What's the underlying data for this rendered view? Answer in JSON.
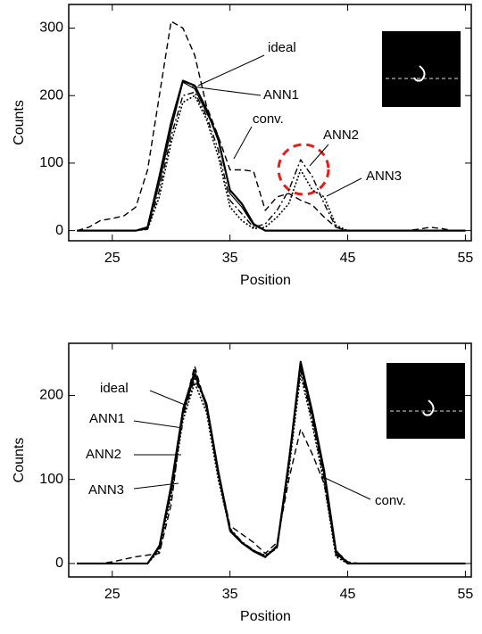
{
  "chart_data": [
    {
      "type": "line",
      "x_label": "Position",
      "y_label": "Counts",
      "x": [
        22,
        23,
        24,
        25,
        26,
        27,
        28,
        29,
        30,
        31,
        32,
        33,
        34,
        35,
        36,
        37,
        38,
        39,
        40,
        41,
        42,
        43,
        44,
        45,
        46,
        47,
        48,
        49,
        50,
        51,
        52,
        53,
        54,
        55
      ],
      "xlim": [
        21.3,
        55.5
      ],
      "xticks": [
        25,
        35,
        45,
        55
      ],
      "ylim": [
        -15,
        335
      ],
      "yticks": [
        0,
        100,
        200,
        300
      ],
      "annotations": [
        "ideal",
        "ANN1",
        "conv.",
        "ANN2",
        "ANN3"
      ],
      "series": [
        {
          "name": "ideal",
          "color": "#000000",
          "style": "solid",
          "values": [
            0,
            0,
            0,
            0,
            0,
            0,
            5,
            80,
            160,
            222,
            215,
            180,
            135,
            60,
            40,
            10,
            0,
            0,
            0,
            0,
            0,
            0,
            0,
            0,
            0,
            0,
            0,
            0,
            0,
            0,
            0,
            0,
            0,
            0
          ]
        },
        {
          "name": "ANN1",
          "color": "#000000",
          "style": "thin",
          "values": [
            0,
            0,
            0,
            0,
            0,
            0,
            3,
            70,
            150,
            220,
            210,
            175,
            140,
            55,
            35,
            8,
            0,
            0,
            0,
            0,
            0,
            0,
            0,
            0,
            0,
            0,
            0,
            0,
            0,
            0,
            0,
            0,
            0,
            0
          ]
        },
        {
          "name": "ANN2",
          "color": "#000000",
          "style": "dashdot",
          "values": [
            0,
            0,
            0,
            0,
            0,
            0,
            2,
            60,
            140,
            200,
            205,
            170,
            120,
            45,
            25,
            5,
            10,
            30,
            60,
            105,
            80,
            40,
            5,
            0,
            0,
            0,
            0,
            0,
            0,
            0,
            0,
            0,
            0,
            0
          ]
        },
        {
          "name": "ANN3",
          "color": "#000000",
          "style": "dotted",
          "values": [
            0,
            0,
            0,
            0,
            0,
            0,
            2,
            50,
            130,
            190,
            200,
            165,
            110,
            35,
            15,
            3,
            5,
            20,
            40,
            90,
            60,
            50,
            8,
            0,
            0,
            0,
            0,
            0,
            0,
            0,
            0,
            0,
            0,
            0
          ]
        },
        {
          "name": "conv.",
          "color": "#000000",
          "style": "dashed",
          "values": [
            0,
            5,
            15,
            18,
            22,
            35,
            90,
            200,
            310,
            300,
            260,
            185,
            140,
            90,
            90,
            88,
            30,
            50,
            55,
            45,
            38,
            20,
            5,
            0,
            0,
            0,
            0,
            0,
            0,
            2,
            5,
            3,
            0,
            0
          ]
        }
      ]
    },
    {
      "type": "line",
      "x_label": "Position",
      "y_label": "Counts",
      "x": [
        22,
        23,
        24,
        25,
        26,
        27,
        28,
        29,
        30,
        31,
        32,
        33,
        34,
        35,
        36,
        37,
        38,
        39,
        40,
        41,
        42,
        43,
        44,
        45,
        46,
        47,
        48,
        49,
        50,
        51,
        52,
        53,
        54,
        55
      ],
      "xlim": [
        21.3,
        55.5
      ],
      "xticks": [
        25,
        35,
        45,
        55
      ],
      "ylim": [
        -16,
        262
      ],
      "yticks": [
        0,
        100,
        200
      ],
      "annotations": [
        "ideal",
        "ANN1",
        "ANN2",
        "ANN3",
        "conv."
      ],
      "series": [
        {
          "name": "ideal",
          "color": "#000000",
          "style": "solid",
          "values": [
            0,
            0,
            0,
            0,
            0,
            0,
            0,
            20,
            90,
            180,
            225,
            190,
            110,
            40,
            25,
            15,
            8,
            20,
            120,
            240,
            180,
            110,
            15,
            0,
            0,
            0,
            0,
            0,
            0,
            0,
            0,
            0,
            0,
            0
          ]
        },
        {
          "name": "ANN1",
          "color": "#000000",
          "style": "thin",
          "values": [
            0,
            0,
            0,
            0,
            0,
            0,
            0,
            22,
            95,
            185,
            230,
            185,
            105,
            38,
            24,
            14,
            7,
            22,
            125,
            235,
            175,
            105,
            12,
            0,
            0,
            0,
            0,
            0,
            0,
            0,
            0,
            0,
            0,
            0
          ]
        },
        {
          "name": "ANN2",
          "color": "#000000",
          "style": "dashdot",
          "values": [
            0,
            0,
            0,
            0,
            0,
            0,
            0,
            18,
            85,
            175,
            220,
            188,
            108,
            42,
            26,
            16,
            9,
            18,
            115,
            230,
            170,
            100,
            10,
            0,
            0,
            0,
            0,
            0,
            0,
            0,
            0,
            0,
            0,
            0
          ]
        },
        {
          "name": "ANN3",
          "color": "#000000",
          "style": "dotted",
          "values": [
            0,
            0,
            0,
            0,
            0,
            0,
            0,
            15,
            80,
            170,
            215,
            180,
            100,
            40,
            25,
            15,
            10,
            20,
            110,
            225,
            165,
            95,
            8,
            0,
            0,
            0,
            0,
            0,
            0,
            0,
            0,
            0,
            0,
            0
          ]
        },
        {
          "name": "conv.",
          "color": "#000000",
          "style": "dashed",
          "values": [
            0,
            0,
            0,
            2,
            5,
            8,
            10,
            12,
            70,
            180,
            235,
            185,
            110,
            45,
            35,
            25,
            12,
            25,
            100,
            160,
            130,
            95,
            15,
            2,
            0,
            0,
            0,
            0,
            0,
            0,
            0,
            0,
            0,
            0
          ]
        }
      ]
    }
  ]
}
